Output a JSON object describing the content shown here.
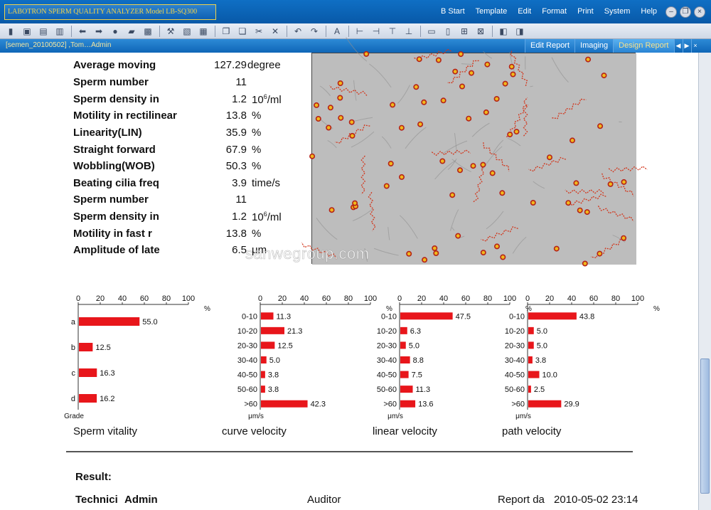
{
  "app": {
    "title": "LABOTRON SPERM QUALITY ANALYZER Model LB-SQ300"
  },
  "menu": [
    "B Start",
    "Template",
    "Edit",
    "Format",
    "Print",
    "System",
    "Help"
  ],
  "toolbar_icons": [
    "save-icon",
    "open-icon",
    "copy-icon",
    "delete-icon",
    "arrow-left-icon",
    "arrow-right-icon",
    "record-icon",
    "folder-icon",
    "disk-icon",
    "tools-icon",
    "preview-icon",
    "printer-icon",
    "page-copy-icon",
    "page-paste-icon",
    "cut-icon",
    "close-icon",
    "undo-icon",
    "redo-icon",
    "font-icon",
    "align-left-icon",
    "align-right-icon",
    "align-top-icon",
    "align-bottom-icon",
    "equal-width-icon",
    "equal-height-icon",
    "center-icon",
    "distribute-icon",
    "bring-front-icon",
    "send-back-icon"
  ],
  "tabrow": {
    "doc_label": "[semen_20100502] ,Tom…Admin",
    "tabs": [
      "Edit Report",
      "Imaging",
      "Design Report"
    ],
    "active_tab": "Design Report"
  },
  "parameters": [
    {
      "name": "Average moving",
      "value": "127.29",
      "unit": "degree"
    },
    {
      "name": "Sperm number",
      "value": "11",
      "unit": ""
    },
    {
      "name": "Sperm density in",
      "value": "1.2",
      "unit": "10^6/ml"
    },
    {
      "name": "Motility in rectilinear",
      "value": "13.8",
      "unit": "%"
    },
    {
      "name": "Linearity(LIN)",
      "value": "35.9",
      "unit": "%"
    },
    {
      "name": "Straight forward",
      "value": "67.9",
      "unit": "%"
    },
    {
      "name": "Wobbling(WOB)",
      "value": "50.3",
      "unit": "%"
    },
    {
      "name": "Beating cilia freq",
      "value": "3.9",
      "unit": "time/s"
    },
    {
      "name": "Sperm number",
      "value": "11",
      "unit": ""
    },
    {
      "name": "Sperm density in",
      "value": "1.2",
      "unit": "10^6/ml"
    },
    {
      "name": "Motility in fast r",
      "value": "13.8",
      "unit": "%"
    },
    {
      "name": "Amplitude of late",
      "value": "6.5",
      "unit": "μm"
    }
  ],
  "unit_parts": {
    "ten": "10",
    "six": "6",
    "per_ml": "/ml"
  },
  "chart_data": [
    {
      "type": "bar",
      "title": "Sperm vitality",
      "xlabel": "%",
      "ylabel": "Grade",
      "xlim": [
        0,
        100
      ],
      "ticks": [
        0,
        20,
        40,
        60,
        80,
        100
      ],
      "categories": [
        "a",
        "b",
        "c",
        "d"
      ],
      "values": [
        55.0,
        12.5,
        16.3,
        16.2
      ],
      "value_labels": [
        "55.0",
        "12.5",
        "16.3",
        "16.2"
      ]
    },
    {
      "type": "bar",
      "title": "curve velocity",
      "xlabel": "%",
      "ylabel": "μm/s",
      "xlim": [
        0,
        100
      ],
      "ticks": [
        0,
        20,
        40,
        60,
        80,
        100
      ],
      "categories": [
        "0-10",
        "10-20",
        "20-30",
        "30-40",
        "40-50",
        "50-60",
        ">60"
      ],
      "values": [
        11.3,
        21.3,
        12.5,
        5.0,
        3.8,
        3.8,
        42.3
      ],
      "value_labels": [
        "11.3",
        "21.3",
        "12.5",
        "5.0",
        "3.8",
        "3.8",
        "42.3"
      ]
    },
    {
      "type": "bar",
      "title": "linear velocity",
      "xlabel": "%",
      "ylabel": "μm/s",
      "xlim": [
        0,
        100
      ],
      "ticks": [
        0,
        20,
        40,
        60,
        80,
        100
      ],
      "categories": [
        "0-10",
        "10-20",
        "20-30",
        "30-40",
        "40-50",
        "50-60",
        ">60"
      ],
      "values": [
        47.5,
        6.3,
        5.0,
        8.8,
        7.5,
        11.3,
        13.6
      ],
      "value_labels": [
        "47.5",
        "6.3",
        "5.0",
        "8.8",
        "7.5",
        "11.3",
        "13.6"
      ]
    },
    {
      "type": "bar",
      "title": "path  velocity",
      "xlabel": "%",
      "ylabel": "μm/s",
      "xlim": [
        0,
        100
      ],
      "ticks": [
        0,
        20,
        40,
        60,
        80,
        100
      ],
      "categories": [
        "0-10",
        "10-20",
        "20-30",
        "30-40",
        "40-50",
        "50-60",
        ">60"
      ],
      "values": [
        43.8,
        5.0,
        5.0,
        3.8,
        10.0,
        2.5,
        29.9
      ],
      "value_labels": [
        "43.8",
        "5.0",
        "5.0",
        "3.8",
        "10.0",
        "2.5",
        "29.9"
      ]
    }
  ],
  "colors": {
    "bar": "#e8161b",
    "accent": "#0f66b7"
  },
  "footer": {
    "result_label": "Result:",
    "technician_label": "Technici",
    "technician_value": "Admin",
    "auditor_label": "Auditor",
    "report_date_label": "Report da",
    "report_date_value": "2010-05-02 23:14"
  },
  "watermark": "sanwegroup.com"
}
